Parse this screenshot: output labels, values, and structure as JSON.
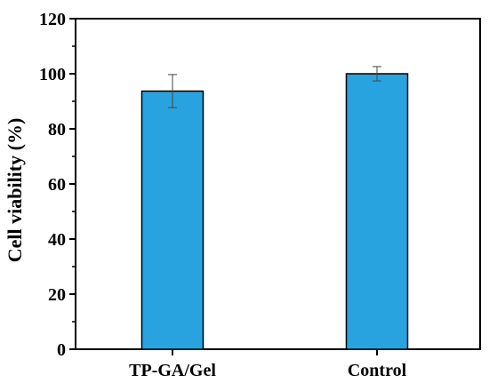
{
  "chart_data": {
    "type": "bar",
    "categories": [
      "TP-GA/Gel",
      "Control"
    ],
    "values": [
      93.7,
      100.0
    ],
    "errors": [
      6.0,
      2.6
    ],
    "ylabel": "Cell viability (%)",
    "xlabel": "",
    "ylim": [
      0,
      120
    ],
    "yticks": [
      0,
      20,
      40,
      60,
      80,
      100,
      120
    ],
    "grid": false,
    "bar_color": "#29a3e0",
    "bar_edge_color": "#000000"
  }
}
